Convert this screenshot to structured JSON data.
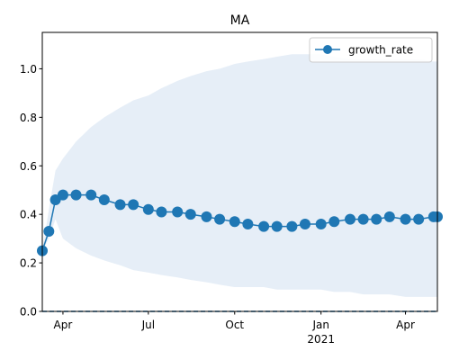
{
  "chart_data": {
    "type": "line",
    "title": "MA",
    "xlabel": "",
    "ylabel": "",
    "x_start": "2020-03-10",
    "x_end": "2021-05-05",
    "xlim": [
      "2020-03-10",
      "2021-05-05"
    ],
    "ylim": [
      0,
      1.15
    ],
    "grid": false,
    "legend_position": "top-right",
    "x_ticks": [
      {
        "date": "2020-04-01",
        "label": "Apr",
        "sub": ""
      },
      {
        "date": "2020-07-01",
        "label": "Jul",
        "sub": ""
      },
      {
        "date": "2020-10-01",
        "label": "Oct",
        "sub": ""
      },
      {
        "date": "2021-01-01",
        "label": "Jan",
        "sub": "2021"
      },
      {
        "date": "2021-04-01",
        "label": "Apr",
        "sub": ""
      }
    ],
    "y_ticks": [
      0.0,
      0.2,
      0.4,
      0.6,
      0.8,
      1.0
    ],
    "y_tick_labels": [
      "0.0",
      "0.2",
      "0.4",
      "0.6",
      "0.8",
      "1.0"
    ],
    "reference_line": {
      "y": 0.0,
      "style": "dashed",
      "color": "#1f77b4"
    },
    "series": [
      {
        "name": "growth_rate",
        "color": "#1f77b4",
        "marker": "circle",
        "band_color": "#e6eef7",
        "points": [
          {
            "date": "2020-03-10",
            "value": 0.25,
            "lower": 0.25,
            "upper": 0.25
          },
          {
            "date": "2020-03-17",
            "value": 0.33,
            "lower": 0.3,
            "upper": 0.42
          },
          {
            "date": "2020-03-24",
            "value": 0.46,
            "lower": 0.38,
            "upper": 0.58
          },
          {
            "date": "2020-04-01",
            "value": 0.48,
            "lower": 0.3,
            "upper": 0.63
          },
          {
            "date": "2020-04-15",
            "value": 0.48,
            "lower": 0.26,
            "upper": 0.7
          },
          {
            "date": "2020-05-01",
            "value": 0.48,
            "lower": 0.23,
            "upper": 0.76
          },
          {
            "date": "2020-05-15",
            "value": 0.46,
            "lower": 0.21,
            "upper": 0.8
          },
          {
            "date": "2020-06-01",
            "value": 0.44,
            "lower": 0.19,
            "upper": 0.84
          },
          {
            "date": "2020-06-15",
            "value": 0.44,
            "lower": 0.17,
            "upper": 0.87
          },
          {
            "date": "2020-07-01",
            "value": 0.42,
            "lower": 0.16,
            "upper": 0.89
          },
          {
            "date": "2020-07-15",
            "value": 0.41,
            "lower": 0.15,
            "upper": 0.92
          },
          {
            "date": "2020-08-01",
            "value": 0.41,
            "lower": 0.14,
            "upper": 0.95
          },
          {
            "date": "2020-08-15",
            "value": 0.4,
            "lower": 0.13,
            "upper": 0.97
          },
          {
            "date": "2020-09-01",
            "value": 0.39,
            "lower": 0.12,
            "upper": 0.99
          },
          {
            "date": "2020-09-15",
            "value": 0.38,
            "lower": 0.11,
            "upper": 1.0
          },
          {
            "date": "2020-10-01",
            "value": 0.37,
            "lower": 0.1,
            "upper": 1.02
          },
          {
            "date": "2020-10-15",
            "value": 0.36,
            "lower": 0.1,
            "upper": 1.03
          },
          {
            "date": "2020-11-01",
            "value": 0.35,
            "lower": 0.1,
            "upper": 1.04
          },
          {
            "date": "2020-11-15",
            "value": 0.35,
            "lower": 0.09,
            "upper": 1.05
          },
          {
            "date": "2020-12-01",
            "value": 0.35,
            "lower": 0.09,
            "upper": 1.06
          },
          {
            "date": "2020-12-15",
            "value": 0.36,
            "lower": 0.09,
            "upper": 1.06
          },
          {
            "date": "2021-01-01",
            "value": 0.36,
            "lower": 0.09,
            "upper": 1.06
          },
          {
            "date": "2021-01-15",
            "value": 0.37,
            "lower": 0.08,
            "upper": 1.05
          },
          {
            "date": "2021-02-01",
            "value": 0.38,
            "lower": 0.08,
            "upper": 1.04
          },
          {
            "date": "2021-02-15",
            "value": 0.38,
            "lower": 0.07,
            "upper": 1.04
          },
          {
            "date": "2021-03-01",
            "value": 0.38,
            "lower": 0.07,
            "upper": 1.04
          },
          {
            "date": "2021-03-15",
            "value": 0.39,
            "lower": 0.07,
            "upper": 1.04
          },
          {
            "date": "2021-04-01",
            "value": 0.38,
            "lower": 0.06,
            "upper": 1.04
          },
          {
            "date": "2021-04-15",
            "value": 0.38,
            "lower": 0.06,
            "upper": 1.04
          },
          {
            "date": "2021-05-01",
            "value": 0.39,
            "lower": 0.06,
            "upper": 1.03
          },
          {
            "date": "2021-05-05",
            "value": 0.39,
            "lower": 0.06,
            "upper": 1.03
          }
        ]
      }
    ]
  }
}
